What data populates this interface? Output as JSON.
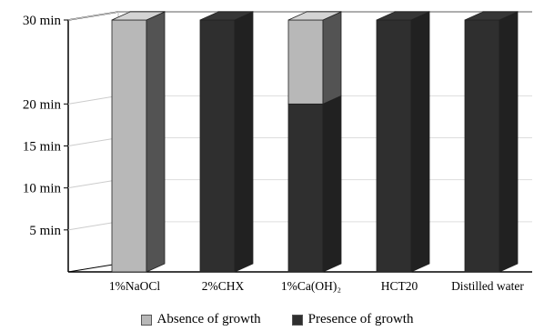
{
  "chart_data": {
    "type": "bar",
    "stacked": true,
    "three_d": true,
    "categories": [
      "1%NaOCl",
      "2%CHX",
      "1%Ca(OH)₂",
      "HCT20",
      "Distilled water"
    ],
    "series": [
      {
        "name": "Presence of growth",
        "values": [
          0,
          30,
          20,
          30,
          30
        ],
        "color": "#2f2f2f"
      },
      {
        "name": "Absence of growth",
        "values": [
          30,
          0,
          10,
          0,
          0
        ],
        "color": "#b8b8b8"
      }
    ],
    "y_ticks": [
      {
        "value": 5,
        "label": "5 min"
      },
      {
        "value": 10,
        "label": "10 min"
      },
      {
        "value": 15,
        "label": "15 min"
      },
      {
        "value": 20,
        "label": "20 min"
      },
      {
        "value": 30,
        "label": "30 min"
      }
    ],
    "ylim": [
      0,
      30
    ],
    "legend_position": "bottom",
    "grid": true
  }
}
